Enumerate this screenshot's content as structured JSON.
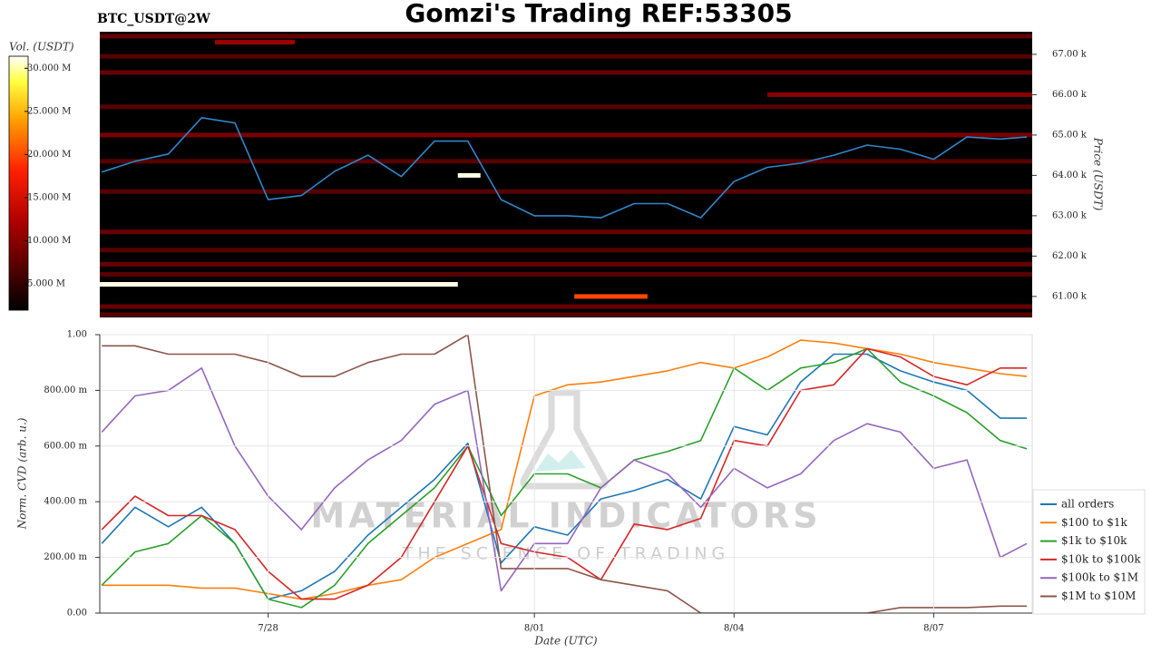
{
  "chart_data": [
    {
      "type": "heatmap",
      "title": "Gomzi's Trading REF:53305",
      "subtitle": "BTC_USDT@2W",
      "ylabel": "Price (USDT)",
      "colorbar_label": "Vol. (USDT)",
      "xlim": [
        206.47,
        220.48
      ],
      "ylim": [
        60.48,
        67.56
      ],
      "yticks": [
        {
          "value": 61,
          "label": "61.00 k"
        },
        {
          "value": 62,
          "label": "62.00 k"
        },
        {
          "value": 63,
          "label": "63.00 k"
        },
        {
          "value": 64,
          "label": "64.00 k"
        },
        {
          "value": 65,
          "label": "65.00 k"
        },
        {
          "value": 66,
          "label": "66.00 k"
        },
        {
          "value": 67,
          "label": "67.00 k"
        }
      ],
      "clim": [
        1.95,
        31.4
      ],
      "cticks": [
        {
          "value": 5,
          "label": "5.000 M"
        },
        {
          "value": 10,
          "label": "10.000 M"
        },
        {
          "value": 15,
          "label": "15.000 M"
        },
        {
          "value": 20,
          "label": "20.000 M"
        },
        {
          "value": 25,
          "label": "25.000 M"
        },
        {
          "value": 30,
          "label": "30.000 M"
        }
      ],
      "bands": {
        "prices": [
          61.3,
          64.0,
          61.0,
          67.3,
          67.45,
          66.95,
          66.55,
          66.0,
          65.7,
          65.0,
          64.35,
          63.6,
          62.6,
          62.15,
          61.8,
          61.55,
          60.75,
          60.55
        ],
        "start": [
          206.47,
          211.85,
          213.6,
          208.2,
          206.47,
          206.47,
          206.47,
          216.5,
          206.47,
          206.47,
          206.47,
          206.47,
          206.47,
          206.47,
          206.47,
          206.47,
          206.47,
          206.47
        ],
        "end": [
          211.85,
          212.19,
          214.7,
          209.4,
          220.48,
          220.48,
          220.48,
          220.48,
          220.48,
          220.48,
          220.48,
          220.48,
          220.48,
          220.48,
          220.48,
          220.48,
          220.48,
          220.48
        ],
        "values": [
          31,
          31,
          20,
          11,
          8,
          7,
          8,
          10,
          7,
          9,
          7,
          7,
          8,
          7,
          8,
          7,
          8,
          7
        ]
      },
      "x": [
        206.5,
        207,
        207.5,
        208,
        208.5,
        209,
        209.5,
        210,
        210.5,
        211,
        211.5,
        212,
        212.5,
        213,
        213.5,
        214,
        214.5,
        215,
        215.5,
        216,
        216.5,
        217,
        217.5,
        218,
        218.5,
        219,
        219.5,
        220,
        220.4
      ],
      "series": [
        {
          "color": "#2f86c8",
          "values": [
            64.08,
            64.35,
            64.53,
            65.43,
            65.3,
            63.4,
            63.5,
            64.1,
            64.5,
            63.97,
            64.85,
            64.85,
            63.4,
            63.0,
            63.0,
            62.95,
            63.3,
            63.3,
            62.95,
            63.85,
            64.2,
            64.3,
            64.5,
            64.75,
            64.65,
            64.4,
            64.95,
            64.9,
            64.95
          ]
        }
      ]
    },
    {
      "type": "line",
      "xlabel": "Date (UTC)",
      "ylabel": "Norm. CVD (arb. u.)",
      "watermark": {
        "title": "MATERIAL INDICATORS",
        "subtitle": "THE SCIENCE OF TRADING"
      },
      "xlim": [
        206.47,
        220.48
      ],
      "xticks": [
        {
          "value": 209,
          "label": "7/28"
        },
        {
          "value": 213,
          "label": "8/01"
        },
        {
          "value": 216,
          "label": "8/04"
        },
        {
          "value": 219,
          "label": "8/07"
        }
      ],
      "ylim": [
        0,
        1
      ],
      "yticks": [
        {
          "value": 0,
          "label": "0.00"
        },
        {
          "value": 0.2,
          "label": "200.00 m"
        },
        {
          "value": 0.4,
          "label": "400.00 m"
        },
        {
          "value": 0.6,
          "label": "600.00 m"
        },
        {
          "value": 0.8,
          "label": "800.00 m"
        },
        {
          "value": 1,
          "label": "1.00"
        }
      ],
      "grid": true,
      "legend": "outside lower right",
      "x": [
        206.5,
        207,
        207.5,
        208,
        208.5,
        209,
        209.5,
        210,
        210.5,
        211,
        211.5,
        212,
        212.5,
        213,
        213.5,
        214,
        214.5,
        215,
        215.5,
        216,
        216.5,
        217,
        217.5,
        218,
        218.5,
        219,
        219.5,
        220,
        220.4
      ],
      "series": [
        {
          "name": "all orders",
          "color": "#1f77b4",
          "values": [
            0.25,
            0.38,
            0.31,
            0.38,
            0.25,
            0.05,
            0.08,
            0.15,
            0.28,
            0.38,
            0.48,
            0.61,
            0.18,
            0.31,
            0.28,
            0.41,
            0.44,
            0.48,
            0.41,
            0.67,
            0.64,
            0.83,
            0.93,
            0.93,
            0.87,
            0.83,
            0.8,
            0.7,
            0.7
          ]
        },
        {
          "name": "$100 to $1k",
          "color": "#ff7f0e",
          "values": [
            0.1,
            0.1,
            0.1,
            0.09,
            0.09,
            0.07,
            0.05,
            0.07,
            0.1,
            0.12,
            0.2,
            0.25,
            0.3,
            0.78,
            0.82,
            0.83,
            0.85,
            0.87,
            0.9,
            0.88,
            0.92,
            0.98,
            0.97,
            0.95,
            0.93,
            0.9,
            0.88,
            0.86,
            0.85
          ]
        },
        {
          "name": "$1k to $10k",
          "color": "#2ca02c",
          "values": [
            0.1,
            0.22,
            0.25,
            0.35,
            0.25,
            0.05,
            0.02,
            0.1,
            0.25,
            0.35,
            0.45,
            0.6,
            0.35,
            0.5,
            0.5,
            0.45,
            0.55,
            0.58,
            0.62,
            0.88,
            0.8,
            0.88,
            0.9,
            0.95,
            0.83,
            0.78,
            0.72,
            0.62,
            0.59
          ]
        },
        {
          "name": "$10k to $100k",
          "color": "#d62728",
          "values": [
            0.3,
            0.42,
            0.35,
            0.35,
            0.3,
            0.15,
            0.05,
            0.05,
            0.1,
            0.2,
            0.4,
            0.6,
            0.25,
            0.22,
            0.2,
            0.12,
            0.32,
            0.3,
            0.34,
            0.62,
            0.6,
            0.8,
            0.82,
            0.95,
            0.92,
            0.85,
            0.82,
            0.88,
            0.88
          ]
        },
        {
          "name": "$100k to $1M",
          "color": "#9467bd",
          "values": [
            0.65,
            0.78,
            0.8,
            0.88,
            0.6,
            0.42,
            0.3,
            0.45,
            0.55,
            0.62,
            0.75,
            0.8,
            0.08,
            0.25,
            0.25,
            0.45,
            0.55,
            0.5,
            0.38,
            0.52,
            0.45,
            0.5,
            0.62,
            0.68,
            0.65,
            0.52,
            0.55,
            0.2,
            0.25
          ]
        },
        {
          "name": "$1M to $10M",
          "color": "#8c564b",
          "values": [
            0.96,
            0.96,
            0.93,
            0.93,
            0.93,
            0.9,
            0.85,
            0.85,
            0.9,
            0.93,
            0.93,
            1.0,
            0.16,
            0.16,
            0.16,
            0.12,
            0.1,
            0.08,
            0.0,
            0.0,
            0.0,
            0.0,
            0.0,
            0.0,
            0.02,
            0.02,
            0.02,
            0.025,
            0.025
          ]
        }
      ]
    }
  ]
}
